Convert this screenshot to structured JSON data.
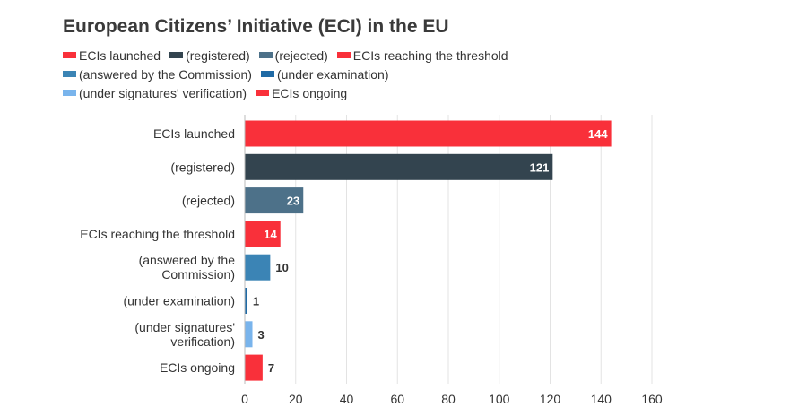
{
  "chart_data": {
    "type": "bar",
    "orientation": "horizontal",
    "title": "European Citizens’ Initiative (ECI) in the EU",
    "xlabel": "",
    "ylabel": "",
    "xlim": [
      0,
      160
    ],
    "ticks": [
      0,
      20,
      40,
      60,
      80,
      100,
      120,
      140,
      160
    ],
    "tick_labels": [
      "0",
      "20",
      "40",
      "60",
      "80",
      "100",
      "120",
      "140",
      "160"
    ],
    "grid": true,
    "legend_position": "top",
    "categories": [
      [
        "ECIs launched"
      ],
      [
        "(registered)"
      ],
      [
        "(rejected)"
      ],
      [
        "ECIs reaching the threshold"
      ],
      [
        "(answered by the",
        "Commission)"
      ],
      [
        "(under examination)"
      ],
      [
        "(under signatures'",
        "verification)"
      ],
      [
        "ECIs ongoing"
      ]
    ],
    "values": [
      144,
      121,
      23,
      14,
      10,
      1,
      3,
      7
    ],
    "value_labels": [
      "144",
      "121",
      "23",
      "14",
      "10",
      "1",
      "3",
      "7"
    ],
    "colors": [
      "#f9303a",
      "#33444f",
      "#4d7189",
      "#f9303a",
      "#3b84b5",
      "#1f6aa5",
      "#79b4ec",
      "#f9303a"
    ],
    "legend": [
      [
        {
          "label": "ECIs launched",
          "color": "#f9303a"
        },
        {
          "label": "(registered)",
          "color": "#33444f"
        },
        {
          "label": "(rejected)",
          "color": "#4d7189"
        },
        {
          "label": "ECIs reaching the threshold",
          "color": "#f9303a"
        }
      ],
      [
        {
          "label": "(answered by the Commission)",
          "color": "#3b84b5"
        },
        {
          "label": "(under examination)",
          "color": "#1f6aa5"
        }
      ],
      [
        {
          "label": "(under signatures' verification)",
          "color": "#79b4ec"
        },
        {
          "label": "ECIs ongoing",
          "color": "#f9303a"
        }
      ]
    ]
  }
}
